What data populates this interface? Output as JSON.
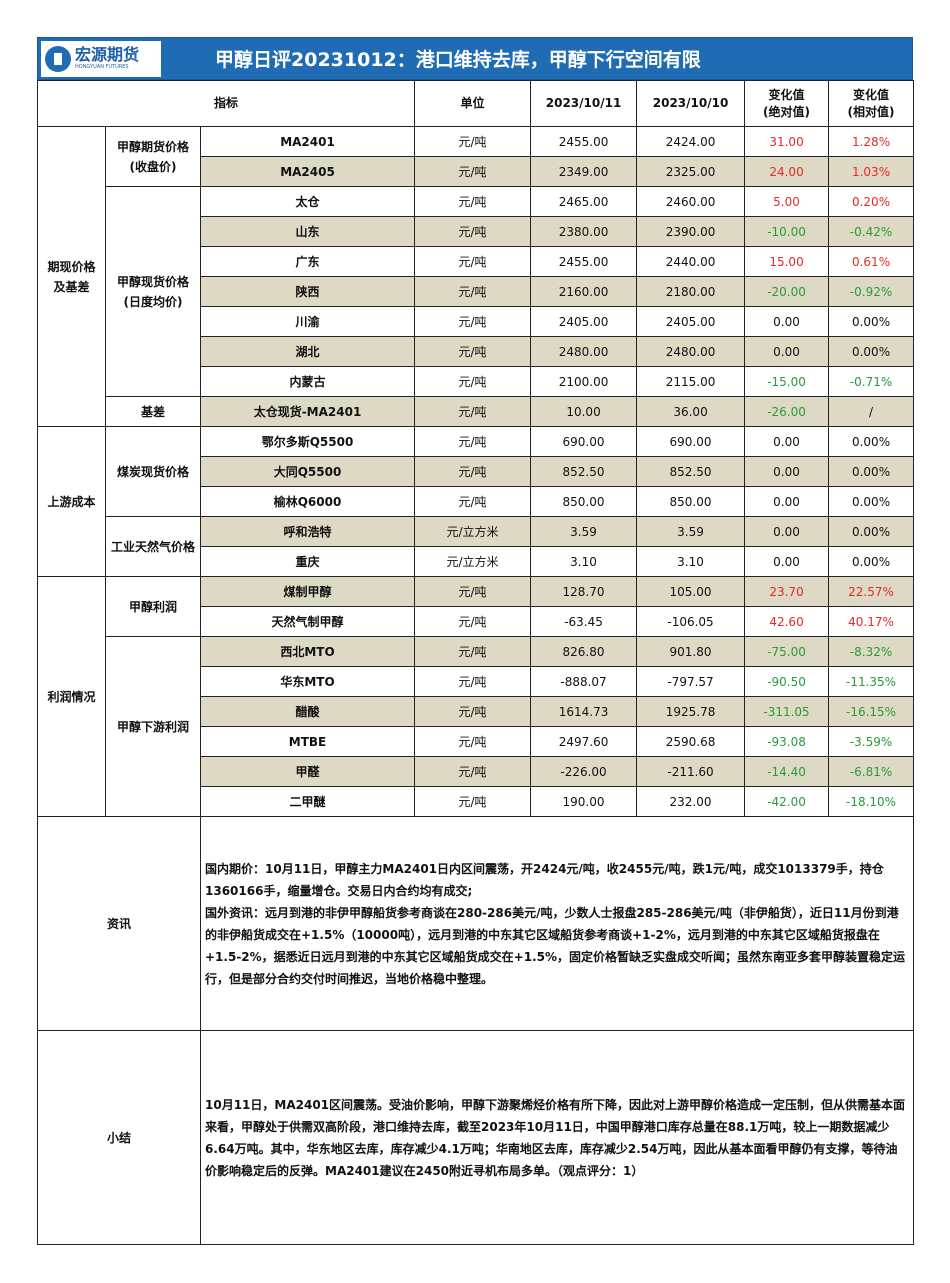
{
  "header": {
    "logo_cn": "宏源期货",
    "logo_en": "HONGYUAN FUTURES",
    "title": "甲醇日评20231012：港口维持去库，甲醇下行空间有限"
  },
  "columns": [
    "指标",
    "单位",
    "2023/10/11",
    "2023/10/10",
    "变化值\n(绝对值)",
    "变化值\n(相对值)"
  ],
  "colors": {
    "banner": "#1f6cb4",
    "stripe": "#ddd9c4",
    "up": "#e02b2b",
    "down": "#2a9a3a"
  },
  "groups": [
    {
      "label": "期现价格\n及基差",
      "subgroups": [
        {
          "label": "甲醇期货价格\n(收盘价)",
          "rows": [
            {
              "item": "MA2401",
              "unit": "元/吨",
              "d1": "2455.00",
              "d2": "2424.00",
              "abs": "31.00",
              "rel": "1.28%"
            },
            {
              "item": "MA2405",
              "unit": "元/吨",
              "d1": "2349.00",
              "d2": "2325.00",
              "abs": "24.00",
              "rel": "1.03%"
            }
          ]
        },
        {
          "label": "甲醇现货价格\n(日度均价)",
          "rows": [
            {
              "item": "太仓",
              "unit": "元/吨",
              "d1": "2465.00",
              "d2": "2460.00",
              "abs": "5.00",
              "rel": "0.20%"
            },
            {
              "item": "山东",
              "unit": "元/吨",
              "d1": "2380.00",
              "d2": "2390.00",
              "abs": "-10.00",
              "rel": "-0.42%"
            },
            {
              "item": "广东",
              "unit": "元/吨",
              "d1": "2455.00",
              "d2": "2440.00",
              "abs": "15.00",
              "rel": "0.61%"
            },
            {
              "item": "陕西",
              "unit": "元/吨",
              "d1": "2160.00",
              "d2": "2180.00",
              "abs": "-20.00",
              "rel": "-0.92%"
            },
            {
              "item": "川渝",
              "unit": "元/吨",
              "d1": "2405.00",
              "d2": "2405.00",
              "abs": "0.00",
              "rel": "0.00%"
            },
            {
              "item": "湖北",
              "unit": "元/吨",
              "d1": "2480.00",
              "d2": "2480.00",
              "abs": "0.00",
              "rel": "0.00%"
            },
            {
              "item": "内蒙古",
              "unit": "元/吨",
              "d1": "2100.00",
              "d2": "2115.00",
              "abs": "-15.00",
              "rel": "-0.71%"
            }
          ]
        },
        {
          "label": "基差",
          "rows": [
            {
              "item": "太仓现货-MA2401",
              "unit": "元/吨",
              "d1": "10.00",
              "d2": "36.00",
              "abs": "-26.00",
              "rel": "/"
            }
          ]
        }
      ]
    },
    {
      "label": "上游成本",
      "subgroups": [
        {
          "label": "煤炭现货价格",
          "rows": [
            {
              "item": "鄂尔多斯Q5500",
              "unit": "元/吨",
              "d1": "690.00",
              "d2": "690.00",
              "abs": "0.00",
              "rel": "0.00%"
            },
            {
              "item": "大同Q5500",
              "unit": "元/吨",
              "d1": "852.50",
              "d2": "852.50",
              "abs": "0.00",
              "rel": "0.00%"
            },
            {
              "item": "榆林Q6000",
              "unit": "元/吨",
              "d1": "850.00",
              "d2": "850.00",
              "abs": "0.00",
              "rel": "0.00%"
            }
          ]
        },
        {
          "label": "工业天然气价格",
          "rows": [
            {
              "item": "呼和浩特",
              "unit": "元/立方米",
              "d1": "3.59",
              "d2": "3.59",
              "abs": "0.00",
              "rel": "0.00%"
            },
            {
              "item": "重庆",
              "unit": "元/立方米",
              "d1": "3.10",
              "d2": "3.10",
              "abs": "0.00",
              "rel": "0.00%"
            }
          ]
        }
      ]
    },
    {
      "label": "利润情况",
      "subgroups": [
        {
          "label": "甲醇利润",
          "rows": [
            {
              "item": "煤制甲醇",
              "unit": "元/吨",
              "d1": "128.70",
              "d2": "105.00",
              "abs": "23.70",
              "rel": "22.57%"
            },
            {
              "item": "天然气制甲醇",
              "unit": "元/吨",
              "d1": "-63.45",
              "d2": "-106.05",
              "abs": "42.60",
              "rel": "40.17%"
            }
          ]
        },
        {
          "label": "甲醇下游利润",
          "rows": [
            {
              "item": "西北MTO",
              "unit": "元/吨",
              "d1": "826.80",
              "d2": "901.80",
              "abs": "-75.00",
              "rel": "-8.32%"
            },
            {
              "item": "华东MTO",
              "unit": "元/吨",
              "d1": "-888.07",
              "d2": "-797.57",
              "abs": "-90.50",
              "rel": "-11.35%"
            },
            {
              "item": "醋酸",
              "unit": "元/吨",
              "d1": "1614.73",
              "d2": "1925.78",
              "abs": "-311.05",
              "rel": "-16.15%"
            },
            {
              "item": "MTBE",
              "unit": "元/吨",
              "d1": "2497.60",
              "d2": "2590.68",
              "abs": "-93.08",
              "rel": "-3.59%"
            },
            {
              "item": "甲醛",
              "unit": "元/吨",
              "d1": "-226.00",
              "d2": "-211.60",
              "abs": "-14.40",
              "rel": "-6.81%"
            },
            {
              "item": "二甲醚",
              "unit": "元/吨",
              "d1": "190.00",
              "d2": "232.00",
              "abs": "-42.00",
              "rel": "-18.10%"
            }
          ]
        }
      ]
    }
  ],
  "news": {
    "label": "资讯",
    "paragraphs": [
      "国内期价：10月11日，甲醇主力MA2401日内区间震荡，开2424元/吨，收2455元/吨，跌1元/吨，成交1013379手，持仓1360166手，缩量增仓。交易日内合约均有成交;",
      "国外资讯：远月到港的非伊甲醇船货参考商谈在280-286美元/吨，少数人士报盘285-286美元/吨（非伊船货），近日11月份到港的非伊船货成交在+1.5%（10000吨），远月到港的中东其它区域船货参考商谈+1-2%，远月到港的中东其它区域船货报盘在+1.5-2%，据悉近日远月到港的中东其它区域船货成交在+1.5%，固定价格暂缺乏实盘成交听闻；虽然东南亚多套甲醇装置稳定运行，但是部分合约交付时间推迟，当地价格稳中整理。"
    ]
  },
  "summary": {
    "label": "小结",
    "text": "10月11日，MA2401区间震荡。受油价影响，甲醇下游聚烯烃价格有所下降，因此对上游甲醇价格造成一定压制，但从供需基本面来看，甲醇处于供需双高阶段，港口维持去库，截至2023年10月11日，中国甲醇港口库存总量在88.1万吨，较上一期数据减少6.64万吨。其中，华东地区去库，库存减少4.1万吨；华南地区去库，库存减少2.54万吨，因此从基本面看甲醇仍有支撑，等待油价影响稳定后的反弹。MA2401建议在2450附近寻机布局多单。（观点评分：1）"
  }
}
